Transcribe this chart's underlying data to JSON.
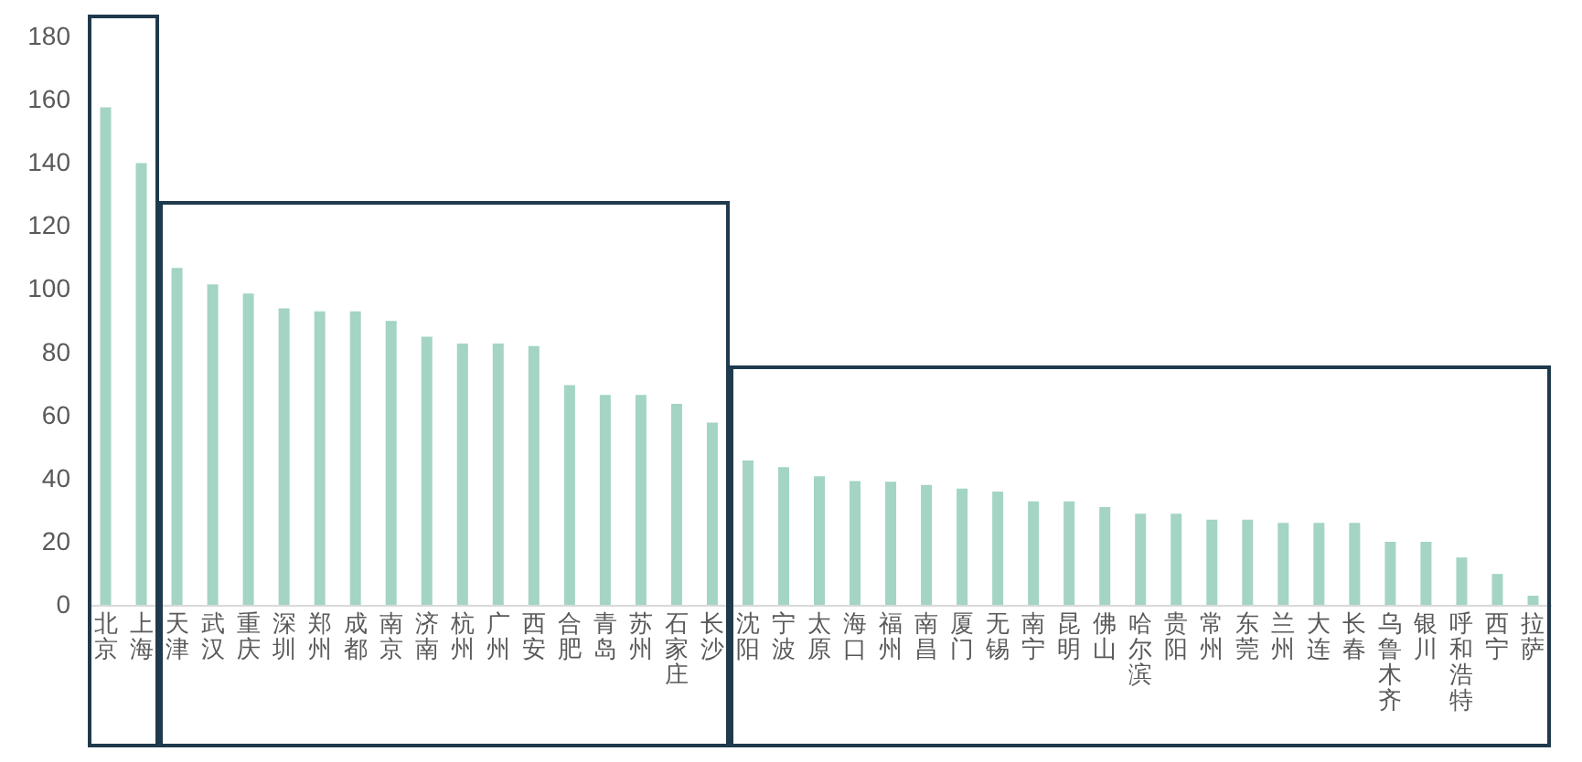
{
  "chart_data": {
    "type": "bar",
    "categories": [
      "北京",
      "上海",
      "天津",
      "武汉",
      "重庆",
      "深圳",
      "郑州",
      "成都",
      "南京",
      "济南",
      "杭州",
      "广州",
      "西安",
      "合肥",
      "青岛",
      "苏州",
      "石家庄",
      "长沙",
      "沈阳",
      "宁波",
      "太原",
      "海口",
      "福州",
      "南昌",
      "厦门",
      "无锡",
      "南宁",
      "昆明",
      "佛山",
      "哈尔滨",
      "贵阳",
      "常州",
      "东莞",
      "兰州",
      "大连",
      "长春",
      "乌鲁木齐",
      "银川",
      "呼和浩特",
      "西宁",
      "拉萨"
    ],
    "values": [
      157.6,
      139.9,
      106.7,
      101.5,
      98.6,
      93.9,
      93,
      93,
      89.9,
      84.9,
      82.8,
      82.8,
      82,
      69.6,
      66.5,
      66.5,
      63.7,
      57.7,
      45.7,
      43.6,
      40.7,
      39.2,
      39,
      38,
      36.8,
      35.9,
      32.8,
      32.8,
      31,
      28.9,
      28.9,
      27,
      27,
      26,
      26,
      26,
      20,
      20,
      15,
      9.8,
      2.9
    ],
    "color": "#a3d4c4",
    "ylim": [
      0,
      180
    ],
    "yticks": [
      0,
      20,
      40,
      60,
      80,
      100,
      120,
      140,
      160,
      180
    ],
    "grid": false
  }
}
